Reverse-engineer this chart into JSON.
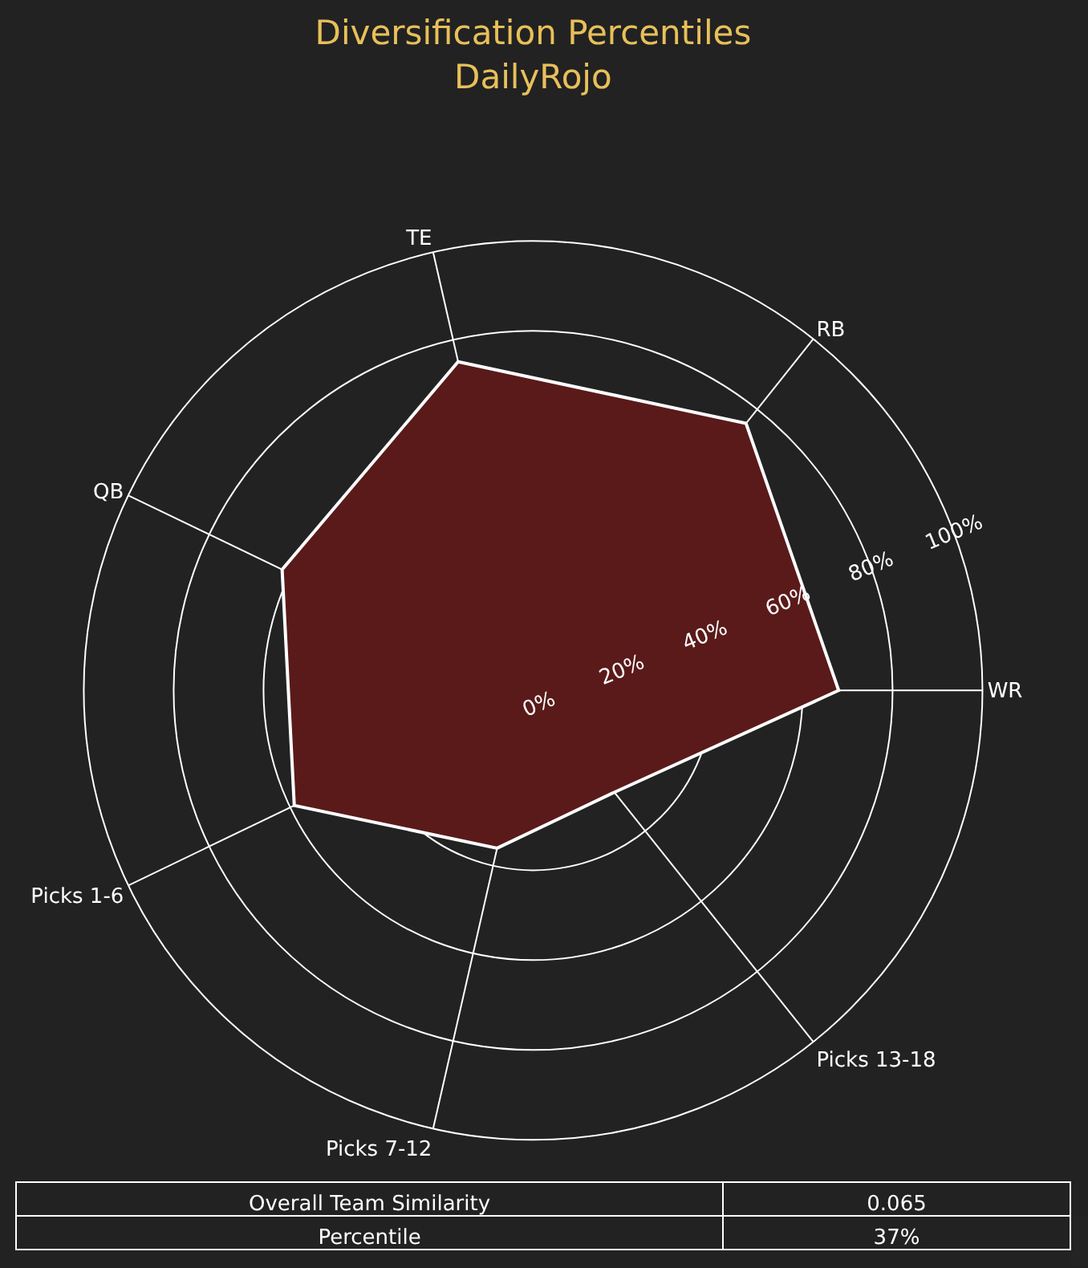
{
  "chart_data": {
    "type": "radar",
    "title": "Diversification Percentiles",
    "subtitle": "DailyRojo",
    "categories": [
      "RB",
      "WR",
      "Picks 13-18",
      "Picks 7-12",
      "Picks 1-6",
      "QB",
      "TE"
    ],
    "series": [
      {
        "color": "#5a1a1a",
        "values": [
          76,
          68,
          29,
          36,
          59,
          62,
          75
        ]
      }
    ],
    "ylim": [
      0,
      100
    ],
    "yticks": [
      {
        "value": 0,
        "label": "0%"
      },
      {
        "value": 20,
        "label": "20%"
      },
      {
        "value": 40,
        "label": "40%"
      },
      {
        "value": 60,
        "label": "60%"
      },
      {
        "value": 80,
        "label": "80%"
      },
      {
        "value": 100,
        "label": "100%"
      }
    ],
    "grid": true,
    "marker": "none",
    "line_style": "solid",
    "annotations": [
      "Overall Team Similarity",
      "0.065",
      "Percentile",
      "37%"
    ]
  }
}
